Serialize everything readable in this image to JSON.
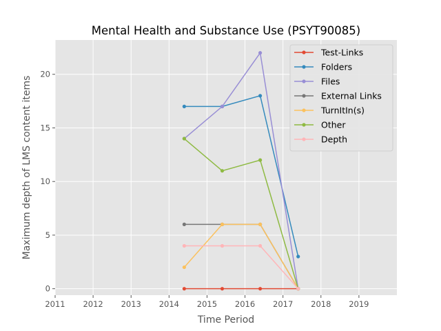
{
  "chart_data": {
    "type": "line",
    "title": "Mental Health and Substance Use (PSYT90085)",
    "xlabel": "Time Period",
    "ylabel": "Maximum depth of LMS content items",
    "xlim": [
      2011,
      2020
    ],
    "ylim": [
      -0.6,
      23.2
    ],
    "x_ticks": [
      "2011",
      "2012",
      "2013",
      "2014",
      "2015",
      "2016",
      "2017",
      "2018",
      "2019"
    ],
    "y_ticks": [
      "0",
      "5",
      "10",
      "15",
      "20"
    ],
    "grid": true,
    "legend_position": "top-right",
    "x": [
      2014.4,
      2015.4,
      2016.4,
      2017.4
    ],
    "series": [
      {
        "name": "Test-Links",
        "color": "#e24a33",
        "values": [
          0,
          0,
          0,
          0
        ]
      },
      {
        "name": "Folders",
        "color": "#348abd",
        "values": [
          17,
          17,
          18,
          3
        ]
      },
      {
        "name": "Files",
        "color": "#988ed5",
        "values": [
          14,
          17,
          22,
          0
        ]
      },
      {
        "name": "External Links",
        "color": "#777777",
        "values": [
          6,
          6,
          6,
          0
        ]
      },
      {
        "name": "TurnItIn(s)",
        "color": "#fbc15e",
        "values": [
          2,
          6,
          6,
          0
        ]
      },
      {
        "name": "Other",
        "color": "#8eba42",
        "values": [
          14,
          11,
          12,
          0
        ]
      },
      {
        "name": "Depth",
        "color": "#ffb5b8",
        "values": [
          4,
          4,
          4,
          0
        ]
      }
    ]
  }
}
